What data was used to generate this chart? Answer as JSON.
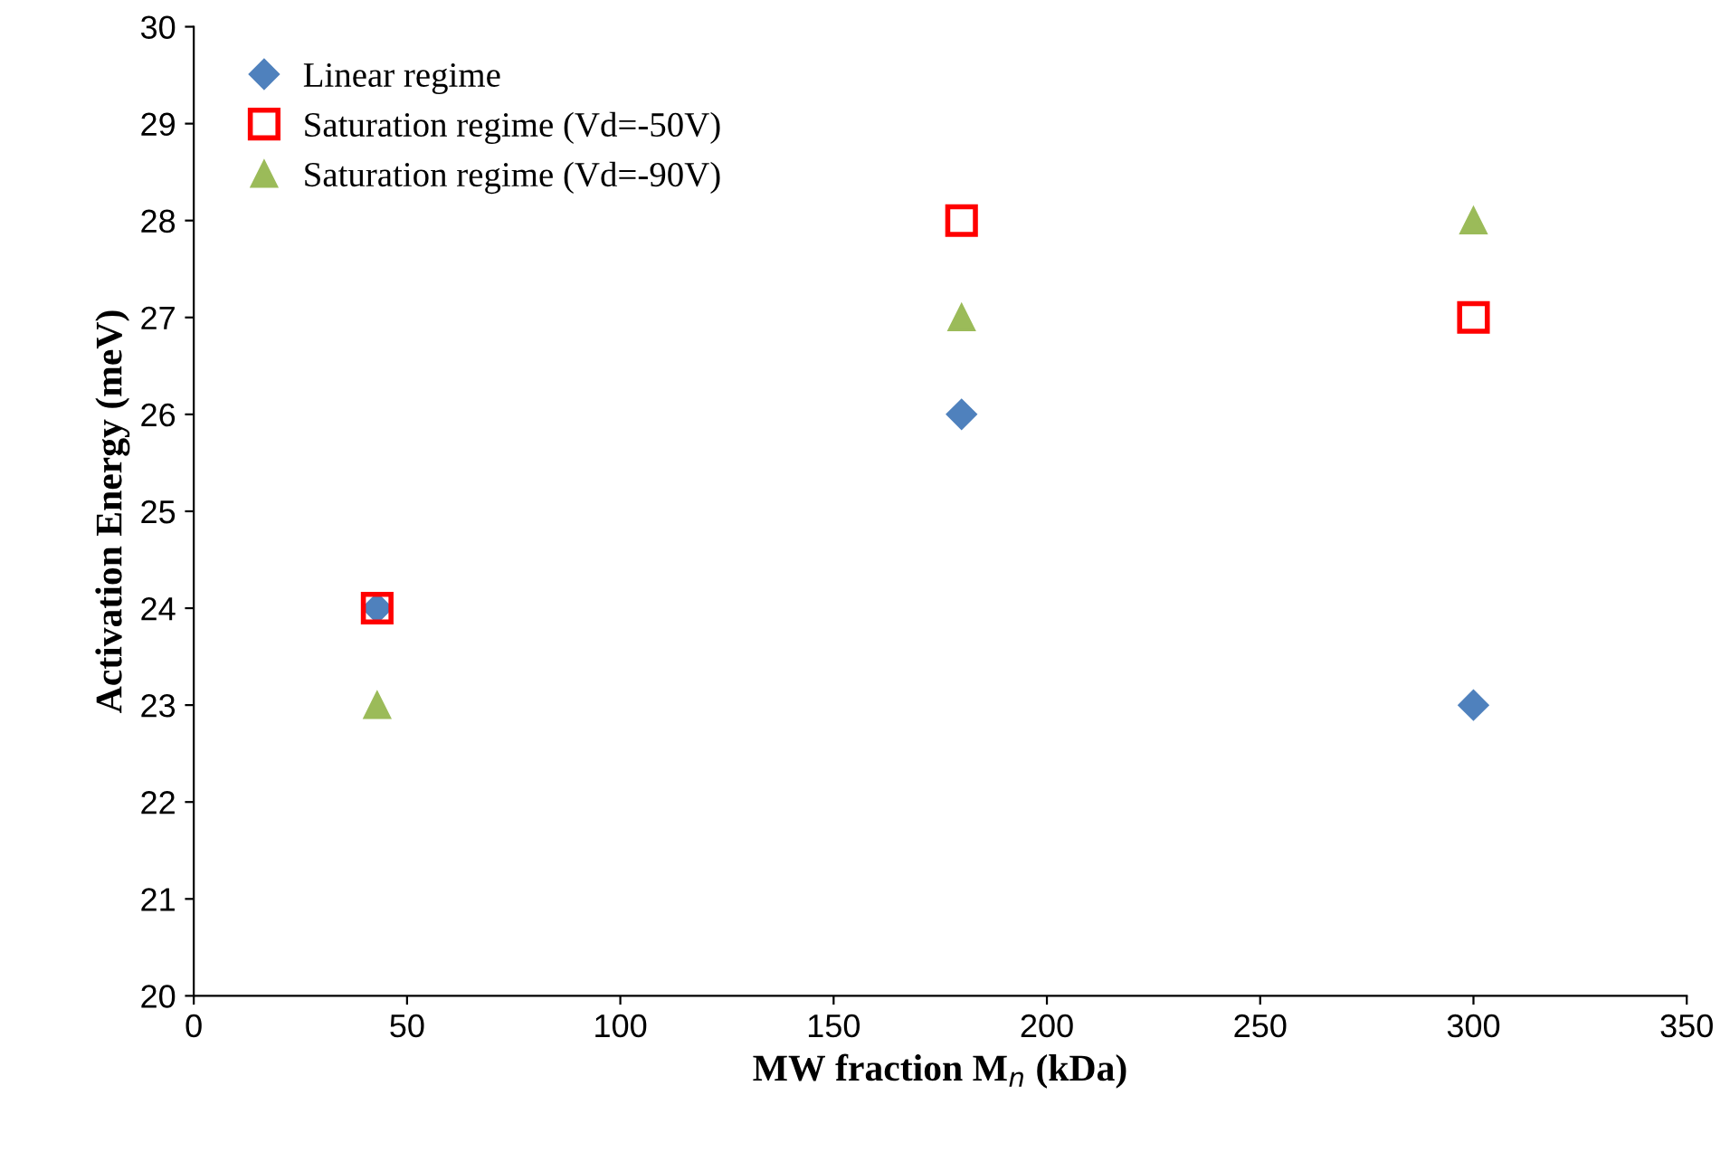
{
  "chart_data": {
    "type": "scatter",
    "xlabel": "MW fraction M$_{n}$ (kDa)",
    "ylabel": "Activation Energy (meV)",
    "xlim": [
      0,
      350
    ],
    "xticks": [
      0,
      50,
      100,
      150,
      200,
      250,
      300,
      350
    ],
    "ylim": [
      20,
      30
    ],
    "yticks": [
      20,
      21,
      22,
      23,
      24,
      25,
      26,
      27,
      28,
      29,
      30
    ],
    "grid": false,
    "legend": "top left",
    "series": [
      {
        "name": "Linear regime",
        "color": "#4f81bd",
        "marker": "diamond",
        "x": [
          43,
          180,
          300
        ],
        "values": [
          24,
          26,
          23
        ]
      },
      {
        "name": "Saturation regime (Vd=-50V)",
        "color": "#ff0000",
        "marker": "square",
        "x": [
          43,
          180,
          300
        ],
        "values": [
          24,
          28,
          27
        ]
      },
      {
        "name": "Saturation regime (Vd=-90V)",
        "color": "#9bbb59",
        "marker": "triangle",
        "x": [
          43,
          180,
          300
        ],
        "values": [
          23,
          27,
          28
        ]
      }
    ]
  }
}
